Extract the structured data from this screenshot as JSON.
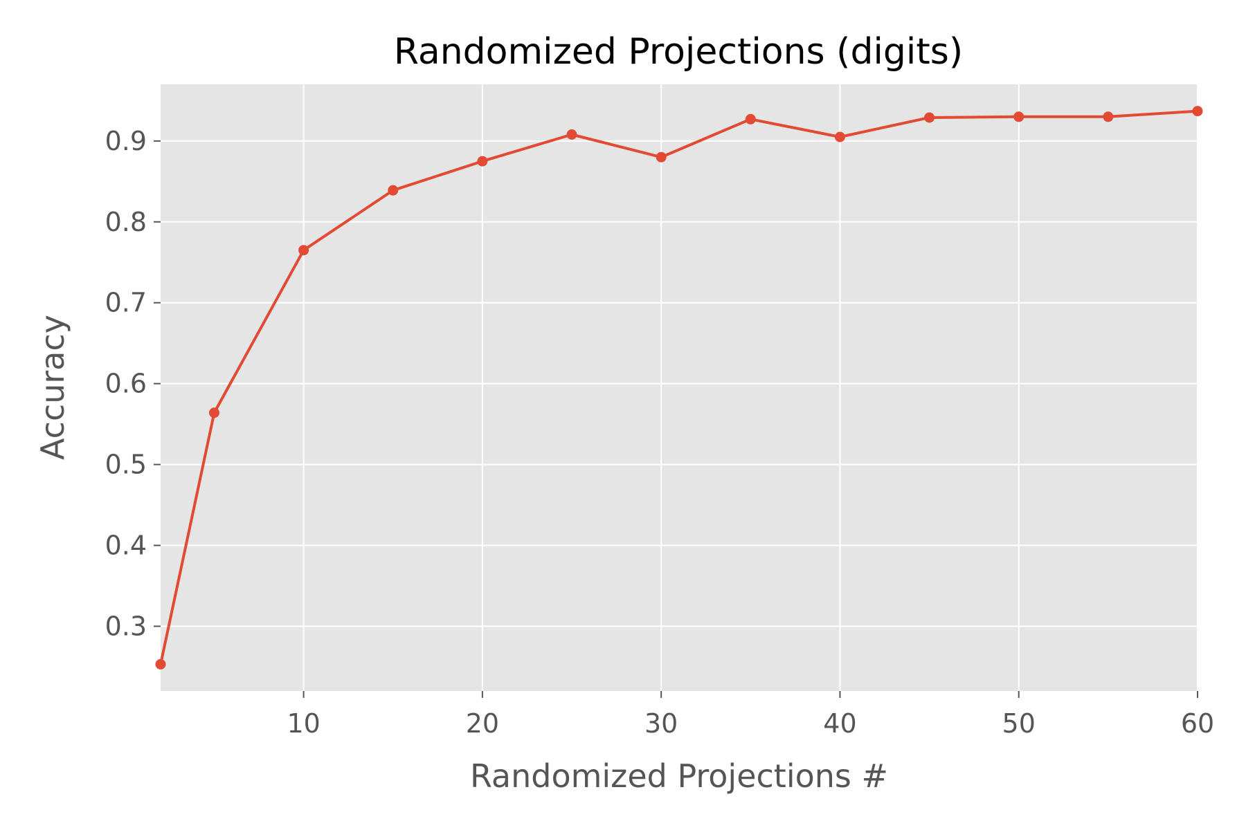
{
  "chart_data": {
    "type": "line",
    "title": "Randomized Projections (digits)",
    "xlabel": "Randomized Projections #",
    "ylabel": "Accuracy",
    "xlim": [
      2,
      60
    ],
    "ylim": [
      0.22,
      0.97
    ],
    "xticks": [
      10,
      20,
      30,
      40,
      50,
      60
    ],
    "yticks": [
      0.3,
      0.4,
      0.5,
      0.6,
      0.7,
      0.8,
      0.9
    ],
    "grid": true,
    "legend": "none",
    "series": [
      {
        "color": "#E24A33",
        "x": [
          2,
          5,
          10,
          15,
          20,
          25,
          30,
          35,
          40,
          45,
          50,
          55,
          60
        ],
        "y": [
          0.253,
          0.564,
          0.765,
          0.839,
          0.875,
          0.908,
          0.88,
          0.927,
          0.905,
          0.929,
          0.93,
          0.93,
          0.937
        ]
      }
    ]
  }
}
